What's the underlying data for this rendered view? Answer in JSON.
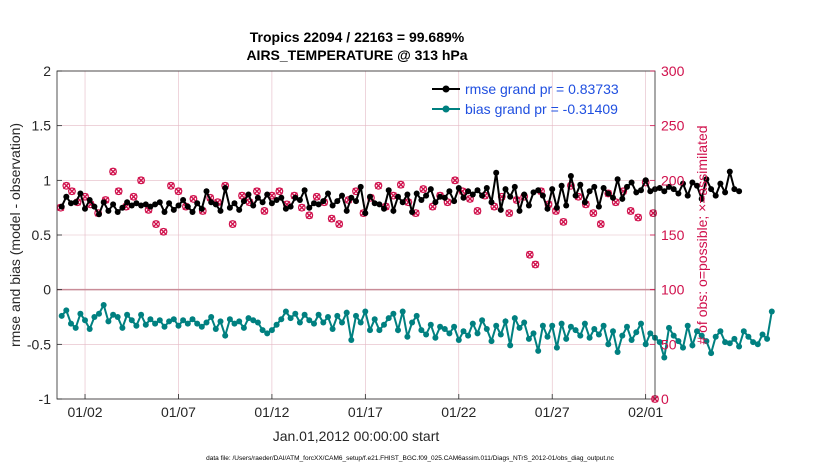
{
  "chart_data": {
    "type": "line",
    "title_line1": "Tropics 22094 / 22163 = 99.689%",
    "title_line2": "AIRS_TEMPERATURE @ 313 hPa",
    "xlabel": "Jan.01,2012 00:00:00 start",
    "ylabel_left": "rmse and bias (model - observation)",
    "ylabel_right": "# of obs: o=possible; ×=assimilated",
    "xlim": [
      0,
      32
    ],
    "ylim_left": [
      -1,
      2
    ],
    "ylim_right": [
      0,
      300
    ],
    "x_ticks": [
      {
        "value": 1.5,
        "label": "01/02"
      },
      {
        "value": 6.5,
        "label": "01/07"
      },
      {
        "value": 11.5,
        "label": "01/12"
      },
      {
        "value": 16.5,
        "label": "01/17"
      },
      {
        "value": 21.5,
        "label": "01/22"
      },
      {
        "value": 26.5,
        "label": "01/27"
      },
      {
        "value": 31.5,
        "label": "02/01"
      }
    ],
    "y_ticks_left": [
      {
        "value": -1,
        "label": "-1"
      },
      {
        "value": -0.5,
        "label": "-0.5"
      },
      {
        "value": 0,
        "label": "0"
      },
      {
        "value": 0.5,
        "label": "0.5"
      },
      {
        "value": 1,
        "label": "1"
      },
      {
        "value": 1.5,
        "label": "1.5"
      },
      {
        "value": 2,
        "label": "2"
      }
    ],
    "y_ticks_right": [
      {
        "value": 0,
        "label": "0"
      },
      {
        "value": 50,
        "label": "50"
      },
      {
        "value": 100,
        "label": "100"
      },
      {
        "value": 150,
        "label": "150"
      },
      {
        "value": 200,
        "label": "200"
      },
      {
        "value": 250,
        "label": "250"
      },
      {
        "value": 300,
        "label": "300"
      }
    ],
    "legend_position": "top-right",
    "x_start": 0.25,
    "x_step": 0.25,
    "series": [
      {
        "name": "rmse",
        "legend": "rmse grand pr = 0.83733",
        "color": "#000000",
        "axis": "left",
        "values": [
          0.76,
          0.85,
          0.79,
          0.8,
          0.88,
          0.74,
          0.82,
          0.76,
          0.69,
          0.8,
          0.72,
          0.78,
          0.71,
          0.75,
          0.8,
          0.77,
          0.79,
          0.77,
          0.78,
          0.76,
          0.78,
          0.8,
          0.71,
          0.79,
          0.73,
          0.77,
          0.82,
          0.76,
          0.71,
          0.79,
          0.74,
          0.9,
          0.8,
          0.78,
          0.72,
          0.93,
          0.75,
          0.79,
          0.73,
          0.81,
          0.87,
          0.77,
          0.84,
          0.8,
          0.87,
          0.79,
          0.82,
          0.84,
          0.74,
          0.76,
          0.84,
          0.82,
          0.91,
          0.75,
          0.79,
          0.78,
          0.81,
          0.88,
          0.77,
          0.81,
          0.86,
          0.72,
          0.84,
          0.81,
          0.94,
          0.7,
          0.85,
          0.79,
          0.78,
          0.74,
          0.91,
          0.72,
          0.85,
          0.8,
          0.87,
          0.71,
          0.88,
          0.82,
          0.86,
          0.92,
          0.8,
          0.85,
          0.84,
          0.9,
          0.81,
          0.93,
          0.84,
          0.9,
          0.87,
          0.91,
          0.86,
          0.93,
          0.8,
          1.07,
          0.73,
          0.92,
          0.85,
          0.94,
          0.72,
          0.87,
          0.77,
          0.89,
          0.91,
          0.86,
          0.74,
          0.92,
          0.75,
          0.95,
          0.77,
          1.04,
          0.86,
          0.96,
          0.8,
          0.9,
          0.94,
          0.76,
          0.93,
          0.88,
          0.84,
          1.01,
          0.83,
          0.94,
          0.98,
          0.89,
          0.91,
          1.0,
          0.9,
          0.92,
          0.93,
          0.9,
          0.94,
          0.92,
          0.88,
          0.97,
          0.86,
          0.98,
          0.95,
          0.83,
          1.01,
          0.92,
          0.86,
          0.97,
          0.89,
          1.08,
          0.92,
          0.9
        ]
      },
      {
        "name": "bias",
        "legend": "bias grand pr = -0.31409",
        "color": "#008080",
        "axis": "left",
        "values": [
          -0.24,
          -0.19,
          -0.31,
          -0.35,
          -0.22,
          -0.28,
          -0.36,
          -0.25,
          -0.22,
          -0.14,
          -0.29,
          -0.23,
          -0.25,
          -0.35,
          -0.23,
          -0.28,
          -0.33,
          -0.23,
          -0.32,
          -0.27,
          -0.31,
          -0.28,
          -0.34,
          -0.29,
          -0.27,
          -0.33,
          -0.28,
          -0.31,
          -0.27,
          -0.31,
          -0.34,
          -0.3,
          -0.25,
          -0.36,
          -0.29,
          -0.42,
          -0.27,
          -0.31,
          -0.29,
          -0.35,
          -0.26,
          -0.28,
          -0.3,
          -0.37,
          -0.4,
          -0.37,
          -0.32,
          -0.27,
          -0.2,
          -0.26,
          -0.22,
          -0.3,
          -0.23,
          -0.28,
          -0.31,
          -0.23,
          -0.3,
          -0.25,
          -0.36,
          -0.24,
          -0.3,
          -0.21,
          -0.46,
          -0.24,
          -0.3,
          -0.2,
          -0.37,
          -0.27,
          -0.37,
          -0.32,
          -0.26,
          -0.22,
          -0.37,
          -0.2,
          -0.43,
          -0.3,
          -0.24,
          -0.37,
          -0.41,
          -0.32,
          -0.44,
          -0.34,
          -0.36,
          -0.4,
          -0.34,
          -0.46,
          -0.38,
          -0.42,
          -0.31,
          -0.4,
          -0.28,
          -0.36,
          -0.47,
          -0.33,
          -0.41,
          -0.29,
          -0.51,
          -0.26,
          -0.35,
          -0.3,
          -0.45,
          -0.4,
          -0.56,
          -0.33,
          -0.43,
          -0.33,
          -0.53,
          -0.31,
          -0.45,
          -0.34,
          -0.37,
          -0.42,
          -0.31,
          -0.44,
          -0.36,
          -0.41,
          -0.33,
          -0.5,
          -0.38,
          -0.57,
          -0.42,
          -0.34,
          -0.46,
          -0.39,
          -0.31,
          -0.5,
          -0.4,
          -0.44,
          -0.48,
          -0.62,
          -0.35,
          -0.42,
          -0.47,
          -0.53,
          -0.33,
          -0.51,
          -0.38,
          -0.42,
          -0.47,
          -0.58,
          -0.43,
          -0.38,
          -0.48,
          -0.49,
          -0.45,
          -0.52,
          -0.38,
          -0.43,
          -0.48,
          -0.5,
          -0.41,
          -0.45,
          -0.2
        ]
      },
      {
        "name": "obs possible / assimilated",
        "color": "#d0104c",
        "axis": "right",
        "points": [
          [
            0.2,
            175
          ],
          [
            0.5,
            195
          ],
          [
            0.8,
            190
          ],
          [
            1.1,
            180
          ],
          [
            1.5,
            185
          ],
          [
            1.8,
            178
          ],
          [
            2.2,
            170
          ],
          [
            2.6,
            182
          ],
          [
            3.0,
            208
          ],
          [
            3.3,
            190
          ],
          [
            3.7,
            176
          ],
          [
            4.1,
            185
          ],
          [
            4.5,
            200
          ],
          [
            4.9,
            173
          ],
          [
            5.3,
            160
          ],
          [
            5.7,
            153
          ],
          [
            6.1,
            195
          ],
          [
            6.5,
            190
          ],
          [
            6.9,
            176
          ],
          [
            7.3,
            183
          ],
          [
            7.8,
            172
          ],
          [
            8.2,
            184
          ],
          [
            8.6,
            180
          ],
          [
            9.0,
            195
          ],
          [
            9.4,
            160
          ],
          [
            9.9,
            186
          ],
          [
            10.3,
            180
          ],
          [
            10.7,
            190
          ],
          [
            11.1,
            172
          ],
          [
            11.5,
            186
          ],
          [
            11.9,
            190
          ],
          [
            12.3,
            178
          ],
          [
            12.7,
            186
          ],
          [
            13.1,
            175
          ],
          [
            13.5,
            168
          ],
          [
            13.9,
            185
          ],
          [
            14.3,
            180
          ],
          [
            14.7,
            165
          ],
          [
            15.1,
            160
          ],
          [
            15.6,
            182
          ],
          [
            16.0,
            190
          ],
          [
            16.4,
            170
          ],
          [
            16.8,
            184
          ],
          [
            17.2,
            195
          ],
          [
            17.6,
            176
          ],
          [
            18.0,
            186
          ],
          [
            18.4,
            196
          ],
          [
            18.8,
            180
          ],
          [
            19.2,
            170
          ],
          [
            19.6,
            192
          ],
          [
            20.1,
            176
          ],
          [
            20.5,
            186
          ],
          [
            20.9,
            180
          ],
          [
            21.3,
            200
          ],
          [
            21.7,
            190
          ],
          [
            22.1,
            183
          ],
          [
            22.5,
            172
          ],
          [
            22.9,
            186
          ],
          [
            23.4,
            176
          ],
          [
            23.8,
            185
          ],
          [
            24.2,
            170
          ],
          [
            24.6,
            182
          ],
          [
            25.0,
            185
          ],
          [
            25.3,
            132
          ],
          [
            25.6,
            123
          ],
          [
            25.9,
            190
          ],
          [
            26.3,
            178
          ],
          [
            26.7,
            172
          ],
          [
            27.1,
            162
          ],
          [
            27.5,
            195
          ],
          [
            27.9,
            185
          ],
          [
            28.3,
            178
          ],
          [
            28.7,
            170
          ],
          [
            29.1,
            160
          ],
          [
            29.5,
            188
          ],
          [
            29.9,
            180
          ],
          [
            30.3,
            190
          ],
          [
            30.7,
            172
          ],
          [
            31.1,
            166
          ],
          [
            31.5,
            198
          ],
          [
            31.9,
            170
          ],
          [
            32.0,
            0
          ]
        ]
      }
    ]
  },
  "footer": "data file: /Users/raeder/DAI/ATM_forcXX/CAM6_setup/f.e21.FHIST_BGC.f09_025.CAM6assim.011/Diags_NTrS_2012-01/obs_diag_output.nc"
}
